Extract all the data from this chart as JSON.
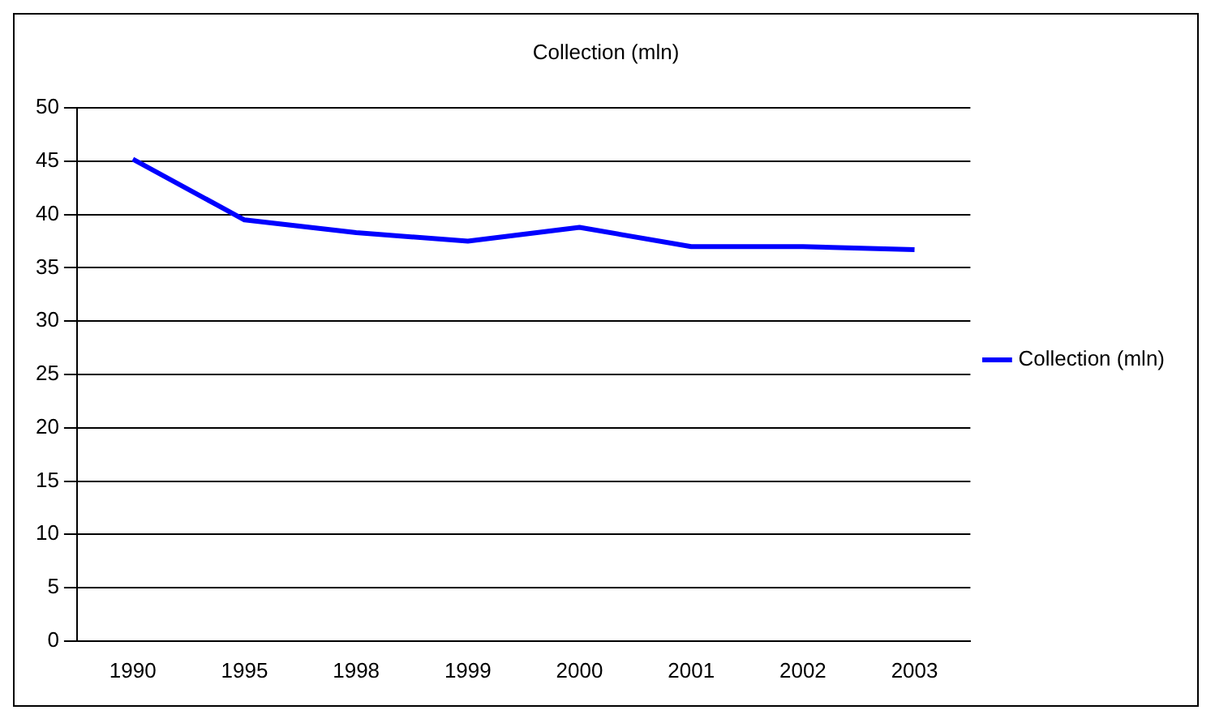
{
  "chart_data": {
    "type": "line",
    "title": "Collection (mln)",
    "categories": [
      "1990",
      "1995",
      "1998",
      "1999",
      "2000",
      "2001",
      "2002",
      "2003"
    ],
    "series": [
      {
        "name": "Collection (mln)",
        "color": "#0000ff",
        "values": [
          45.2,
          39.5,
          38.3,
          37.5,
          38.8,
          37.0,
          37.0,
          36.7
        ]
      }
    ],
    "ylim": [
      0,
      50
    ],
    "yticks": [
      0,
      5,
      10,
      15,
      20,
      25,
      30,
      35,
      40,
      45,
      50
    ],
    "grid": "y",
    "legend": "right",
    "marker": "none",
    "line_style": "solid"
  }
}
